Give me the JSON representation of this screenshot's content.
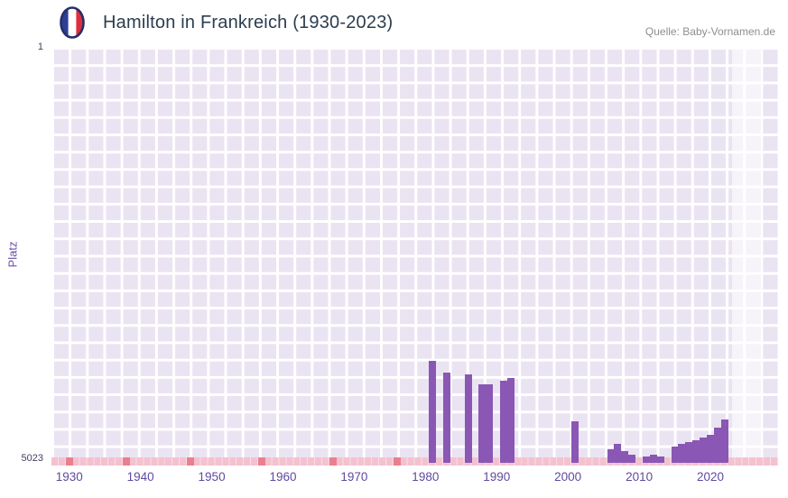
{
  "header": {
    "title": "Hamilton in Frankreich (1930-2023)",
    "source": "Quelle: Baby-Vornamen.de",
    "flag_icon": "france-flag"
  },
  "chart_data": {
    "type": "bar",
    "title": "Hamilton in Frankreich (1930-2023)",
    "ylabel": "Platz",
    "xlabel": "",
    "grid": true,
    "legend": false,
    "y_axis": {
      "min": 1,
      "max": 5023,
      "inverted": true,
      "tick_top": "1",
      "tick_bottom": "5023"
    },
    "x_axis": {
      "tick_labels": [
        "1930",
        "1940",
        "1950",
        "1960",
        "1970",
        "1980",
        "1990",
        "2000",
        "2010",
        "2020"
      ],
      "range": [
        1927.5,
        2029.5
      ]
    },
    "colors": {
      "bar": "#8a57b4",
      "plot_background": "#eae4f2",
      "gridline": "#ffffff",
      "unranked_band": "#f4c2cf",
      "unranked_marker": "#e8808f",
      "title_text": "#2b3d4f",
      "axis_text": "#5e4aa1"
    },
    "bars": [
      {
        "year": 1981,
        "rank": 3790
      },
      {
        "year": 1983,
        "rank": 3930
      },
      {
        "year": 1986,
        "rank": 3950
      },
      {
        "year": 1988,
        "rank": 4070
      },
      {
        "year": 1989,
        "rank": 4070
      },
      {
        "year": 1991,
        "rank": 4030
      },
      {
        "year": 1992,
        "rank": 4000
      },
      {
        "year": 2001,
        "rank": 4520
      },
      {
        "year": 2006,
        "rank": 4860
      },
      {
        "year": 2007,
        "rank": 4790
      },
      {
        "year": 2008,
        "rank": 4880
      },
      {
        "year": 2009,
        "rank": 4930
      },
      {
        "year": 2011,
        "rank": 4950
      },
      {
        "year": 2012,
        "rank": 4920
      },
      {
        "year": 2013,
        "rank": 4945
      },
      {
        "year": 2015,
        "rank": 4830
      },
      {
        "year": 2016,
        "rank": 4790
      },
      {
        "year": 2017,
        "rank": 4770
      },
      {
        "year": 2018,
        "rank": 4755
      },
      {
        "year": 2019,
        "rank": 4720
      },
      {
        "year": 2020,
        "rank": 4680
      },
      {
        "year": 2021,
        "rank": 4600
      },
      {
        "year": 2022,
        "rank": 4505
      }
    ],
    "unranked_marker_years": [
      1930,
      1938,
      1947,
      1957,
      1967,
      1976
    ],
    "highlight_region": {
      "from_year": 2023,
      "to_year": 2027
    }
  }
}
